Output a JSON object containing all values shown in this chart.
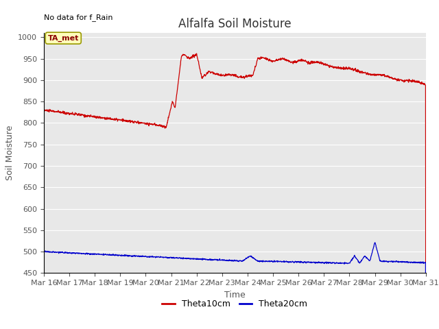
{
  "title": "Alfalfa Soil Moisture",
  "xlabel": "Time",
  "ylabel": "Soil Moisture",
  "note": "No data for f_Rain",
  "legend_label1": "Theta10cm",
  "legend_label2": "Theta20cm",
  "ta_met_label": "TA_met",
  "ylim": [
    450,
    1010
  ],
  "yticks": [
    450,
    500,
    550,
    600,
    650,
    700,
    750,
    800,
    850,
    900,
    950,
    1000
  ],
  "xtick_labels": [
    "Mar 16",
    "Mar 17",
    "Mar 18",
    "Mar 19",
    "Mar 20",
    "Mar 21",
    "Mar 22",
    "Mar 23",
    "Mar 24",
    "Mar 25",
    "Mar 26",
    "Mar 27",
    "Mar 28",
    "Mar 29",
    "Mar 30",
    "Mar 31"
  ],
  "bg_color": "#e8e8e8",
  "red_color": "#cc0000",
  "blue_color": "#0000cc",
  "title_fontsize": 12,
  "axis_label_fontsize": 9,
  "tick_fontsize": 8
}
